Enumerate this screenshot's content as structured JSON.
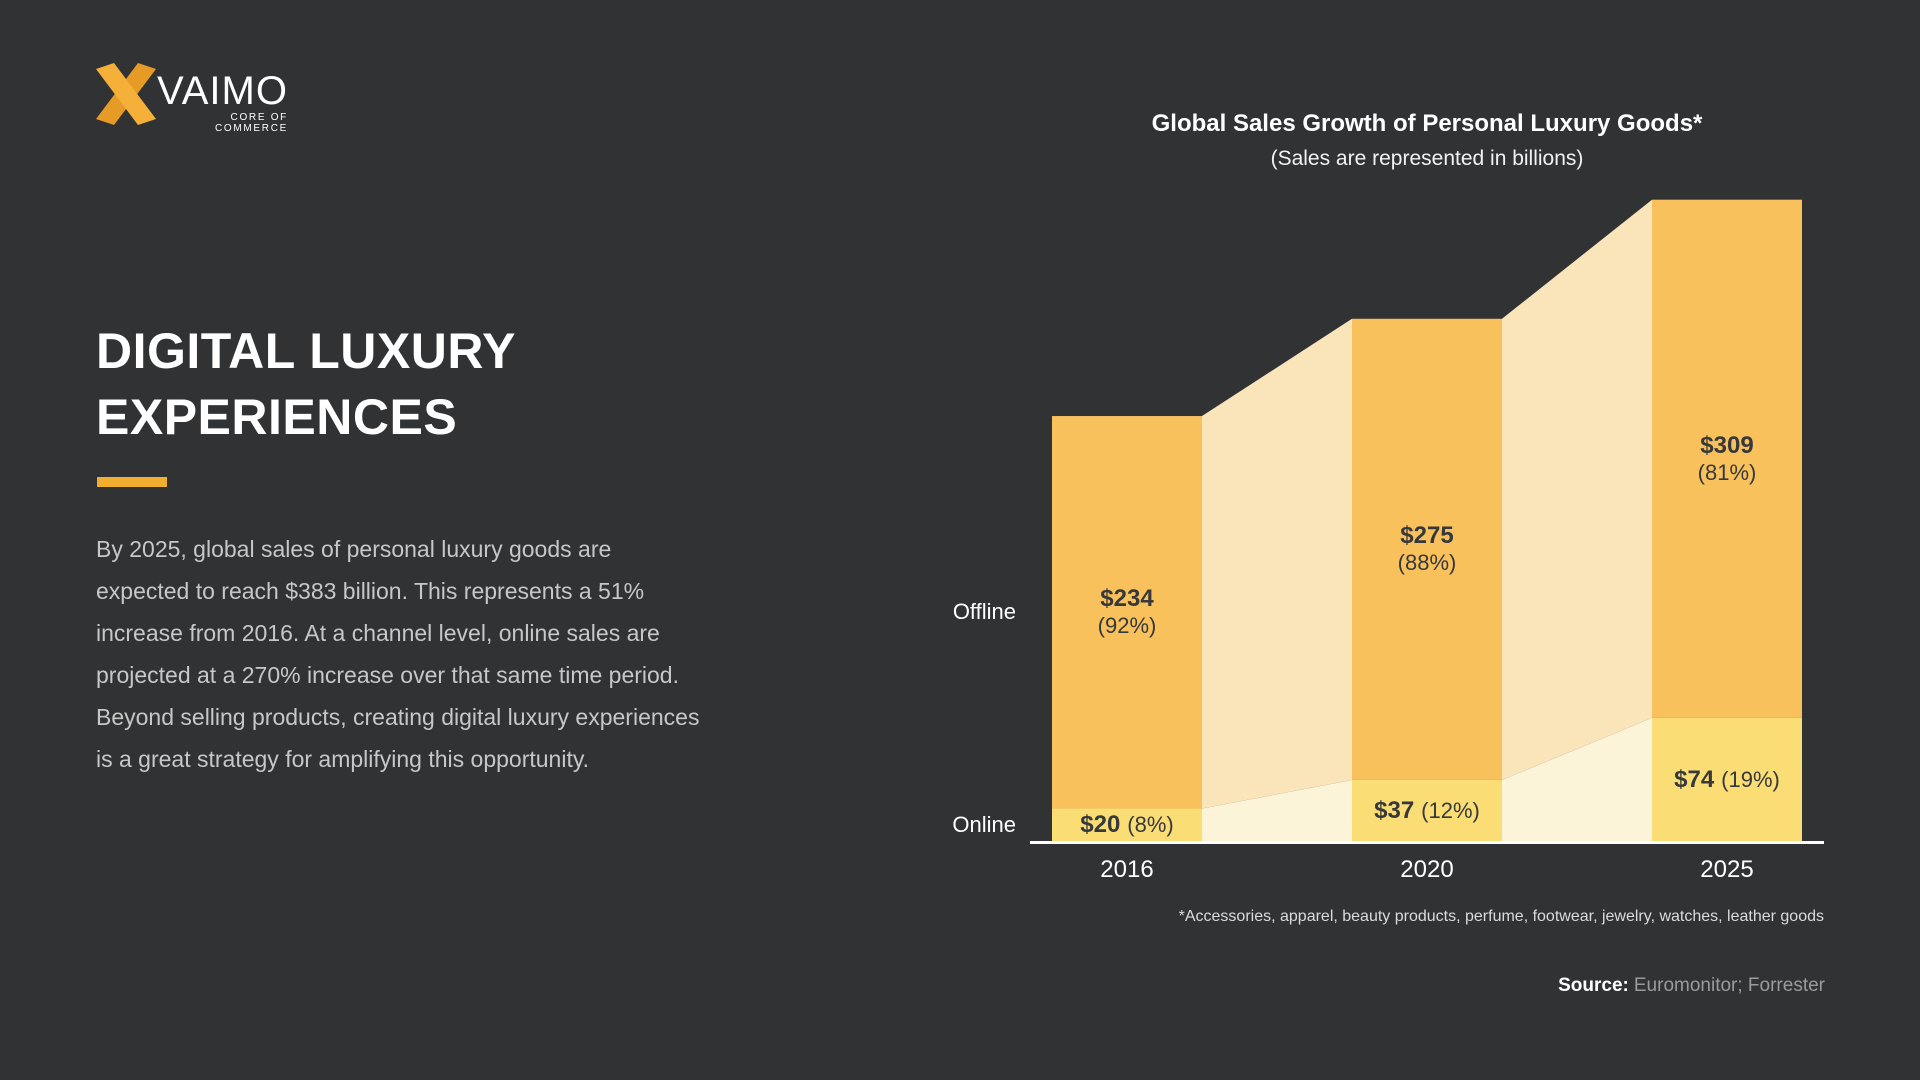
{
  "logo": {
    "name": "VAIMO",
    "tagline": "CORE OF COMMERCE"
  },
  "left": {
    "heading_lines": [
      "DIGITAL LUXURY",
      "EXPERIENCES"
    ],
    "paragraph_lines": [
      "By 2025, global sales of personal luxury goods are",
      "expected to reach $383 billion. This represents a 51%",
      "increase from 2016. At a channel level, online sales are",
      "projected at a 270% increase over that same time period.",
      "Beyond selling products, creating digital luxury experiences",
      "is a great strategy for amplifying this opportunity."
    ]
  },
  "chart_data": {
    "type": "bar",
    "stacked": true,
    "title": "Global Sales Growth of Personal Luxury Goods*",
    "subtitle": "(Sales are represented in billions)",
    "categories": [
      "2016",
      "2020",
      "2025"
    ],
    "series": [
      {
        "name": "Online",
        "values": [
          20,
          37,
          74
        ],
        "percents": [
          "8%",
          "12%",
          "19%"
        ]
      },
      {
        "name": "Offline",
        "values": [
          234,
          275,
          309
        ],
        "percents": [
          "92%",
          "88%",
          "81%"
        ]
      }
    ],
    "totals": [
      254,
      312,
      383
    ],
    "value_prefix": "$",
    "unit": "billions",
    "ylim": [
      0,
      383
    ],
    "legend_position": "left",
    "grid": false,
    "footnote": "*Accessories, apparel, beauty products, perfume, footwear, jewelry, watches, leather goods",
    "source_label": "Source:",
    "source_text": "Euromonitor; Forrester",
    "colors": {
      "background": "#313233",
      "offline_bar": "#F8C15C",
      "online_bar": "#FBDD75",
      "offline_connector": "#FAE5BB",
      "online_connector": "#FCF4D9",
      "axis": "#FFFFFF",
      "bar_text": "#37383A",
      "accent": "#F2AE2E"
    }
  }
}
